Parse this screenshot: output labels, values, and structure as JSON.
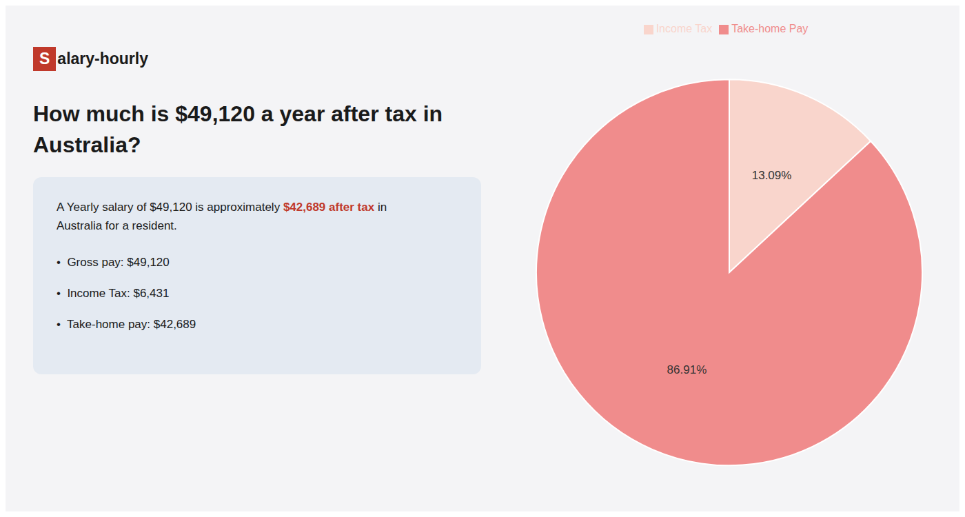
{
  "chart_data": {
    "type": "pie",
    "title": [
      "How much is $49,120 a year after tax in",
      "Australia?"
    ],
    "categories": [
      "Income Tax",
      "Take-home Pay"
    ],
    "values": [
      13.09,
      86.91
    ],
    "value_labels": [
      "13.09%",
      "86.91%"
    ],
    "data_labels": true,
    "colors": [
      "#f9d5cc",
      "#f08c8c"
    ],
    "legend": "top",
    "annotations": [
      {
        "text": "Salary-hourly",
        "color": "#c0392b"
      },
      {
        "text": "A Yearly salary of $49,120 is approximately "
      },
      {
        "text": "$42,689 after tax",
        "color": "#c0392b"
      },
      {
        "text": " in"
      },
      {
        "text": "Australia for a resident."
      },
      {
        "text": "•  Gross pay: $49,120"
      },
      {
        "text": "•  Income Tax: $6,431"
      },
      {
        "text": "•  Take-home pay: $42,689"
      }
    ]
  }
}
